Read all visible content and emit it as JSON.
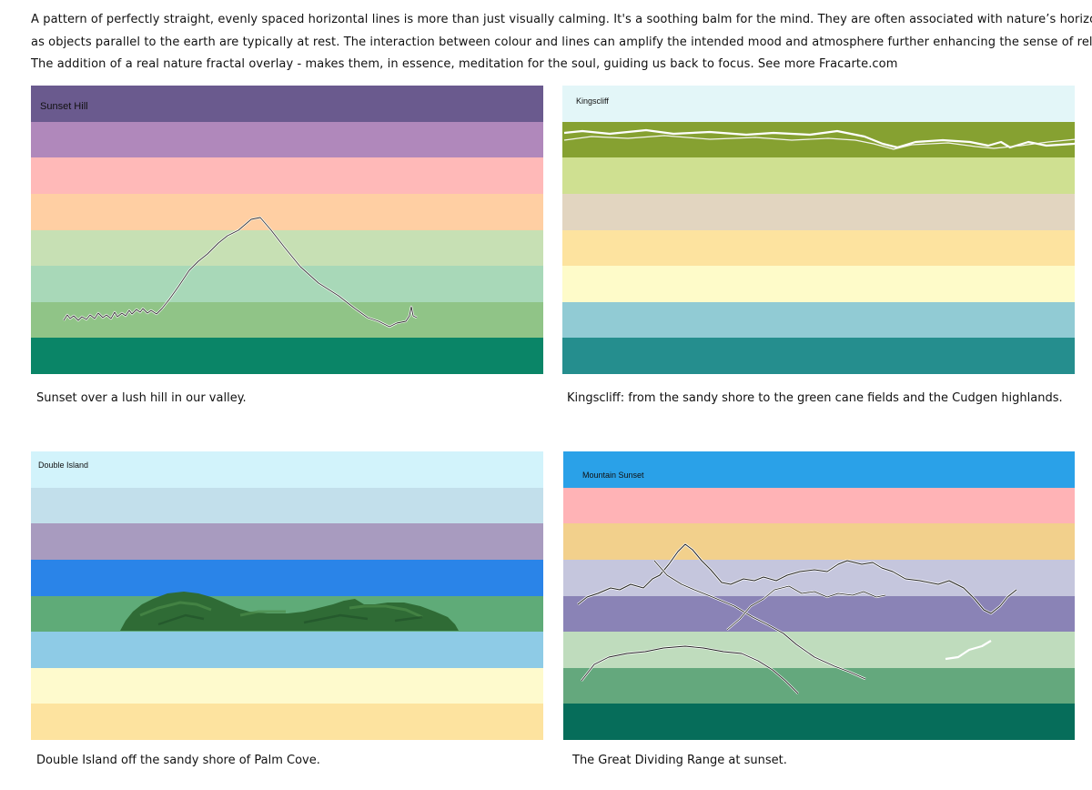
{
  "intro": {
    "line1": "A pattern of perfectly straight, evenly spaced horizontal lines is more than just visually calming. It's a soothing balm for the mind. They are often associated with nature’s horizon,",
    "line2": "as objects parallel to the earth are typically at rest.  The interaction between colour and lines can amplify the intended mood and atmosphere  further enhancing the sense of relaxation.",
    "line3": "The addition of a real nature fractal overlay - makes them, in essence, meditation for the soul, guiding us back to focus.  See more Fracarte.com"
  },
  "panels": [
    {
      "title": "Sunset Hill",
      "caption": "Sunset over a lush hill in our valley.",
      "bands": [
        "#6a5a8e",
        "#b088bb",
        "#ffb9b8",
        "#ffcfa3",
        "#c7e0b4",
        "#a8d8b8",
        "#90c487",
        "#0a8567"
      ]
    },
    {
      "title": "Kingscliff",
      "caption": "Kingscliff: from the sandy shore to the green cane fields and the Cudgen highlands.",
      "bands": [
        "#e3f6f8",
        "#86a131",
        "#cfe091",
        "#e2d5c0",
        "#fde39f",
        "#fefbc9",
        "#91cbd4",
        "#258e8e"
      ]
    },
    {
      "title": "Double Island",
      "caption": "Double Island off the sandy shore of Palm Cove.",
      "bands": [
        "#d2f3fb",
        "#c2dfeb",
        "#a89bbf",
        "#2a84e8",
        "#5fab78",
        "#8ecbe6",
        "#fefacd",
        "#fde39f"
      ]
    },
    {
      "title": "Mountain Sunset",
      "caption": "The Great Dividing Range at sunset.",
      "bands": [
        "#2aa1e8",
        "#ffb3b6",
        "#f2d08c",
        "#c5c6dd",
        "#8a83b6",
        "#bfdcbd",
        "#64a87d",
        "#066d5a"
      ]
    }
  ]
}
